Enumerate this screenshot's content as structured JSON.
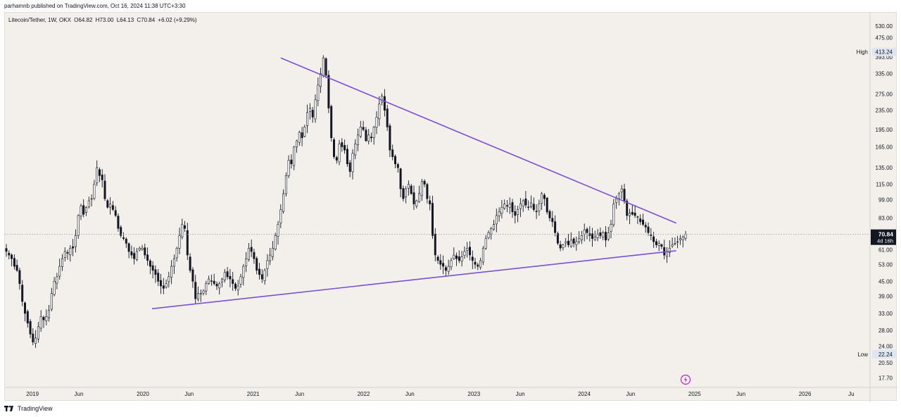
{
  "header": {
    "publisher_line": "parhamnb published on TradingView.com, Oct 16, 2024 11:38 UTC+3:30"
  },
  "legend": {
    "symbol": "Litecoin/Tether, 1W, OKX",
    "open": "O64.82",
    "high": "H73.00",
    "low": "L64.13",
    "close": "C70.84",
    "change": "+6.02 (+9.29%)"
  },
  "price_axis": {
    "ticks": [
      "530.00",
      "475.00",
      "393.00",
      "335.00",
      "275.00",
      "235.00",
      "195.00",
      "165.00",
      "135.00",
      "115.00",
      "99.00",
      "83.00",
      "61.00",
      "53.00",
      "45.00",
      "39.00",
      "33.00",
      "28.00",
      "24.00",
      "20.50",
      "17.70"
    ],
    "high_label": "High",
    "high_value": "413.24",
    "low_label": "Low",
    "low_value": "22.24",
    "last_price": "70.84",
    "countdown": "4d 16h"
  },
  "time_axis": {
    "labels": [
      "2019",
      "Jun",
      "2020",
      "Jun",
      "2021",
      "Jun",
      "2022",
      "Jun",
      "2023",
      "Jun",
      "2024",
      "Jun",
      "2025",
      "Jun",
      "2026",
      "Ju"
    ]
  },
  "footer": {
    "brand": "TradingView"
  },
  "colors": {
    "background": "#f3efeb",
    "candle": "#131722",
    "trendline": "#7b4fd6",
    "last_price_line": "#9e9e9e",
    "flash_icon": "#c026d3"
  },
  "chart_data": {
    "type": "candlestick",
    "symbol": "Litecoin/Tether",
    "timeframe": "1W",
    "exchange": "OKX",
    "y_scale": "log",
    "ylim": [
      16,
      560
    ],
    "x_start": "2018-10",
    "x_end": "2026-07",
    "last_bar": {
      "open": 64.82,
      "high": 73.0,
      "low": 64.13,
      "close": 70.84,
      "change": 6.02,
      "change_pct": 9.29
    },
    "visible_range": {
      "high": 413.24,
      "low": 22.24
    },
    "weekly_closes": [
      60,
      58,
      56,
      52,
      50,
      44,
      37,
      33,
      30,
      27,
      25,
      26,
      29,
      32,
      31,
      32,
      34,
      40,
      45,
      47,
      52,
      56,
      60,
      59,
      62,
      62,
      70,
      85,
      93,
      86,
      92,
      98,
      100,
      115,
      135,
      125,
      120,
      100,
      92,
      95,
      90,
      85,
      75,
      70,
      68,
      65,
      60,
      58,
      56,
      60,
      62,
      62,
      58,
      55,
      52,
      50,
      48,
      45,
      43,
      42,
      44,
      47,
      52,
      56,
      62,
      70,
      78,
      75,
      58,
      50,
      45,
      38,
      40,
      40,
      41,
      44,
      46,
      45,
      44,
      43,
      44,
      46,
      49,
      47,
      46,
      44,
      42,
      43,
      47,
      52,
      56,
      62,
      60,
      56,
      50,
      48,
      46,
      50,
      55,
      58,
      62,
      70,
      78,
      90,
      105,
      125,
      145,
      140,
      165,
      175,
      190,
      180,
      200,
      230,
      240,
      220,
      260,
      300,
      335,
      390,
      330,
      240,
      180,
      150,
      145,
      170,
      165,
      160,
      140,
      130,
      155,
      170,
      185,
      200,
      195,
      175,
      185,
      180,
      200,
      220,
      250,
      270,
      235,
      200,
      160,
      150,
      140,
      135,
      110,
      100,
      110,
      115,
      105,
      95,
      98,
      105,
      118,
      115,
      100,
      95,
      70,
      58,
      55,
      53,
      52,
      50,
      52,
      55,
      58,
      56,
      55,
      57,
      60,
      62,
      58,
      55,
      53,
      52,
      55,
      62,
      68,
      72,
      75,
      78,
      85,
      88,
      92,
      95,
      93,
      95,
      88,
      85,
      90,
      95,
      98,
      94,
      92,
      96,
      90,
      88,
      95,
      105,
      100,
      88,
      83,
      80,
      72,
      65,
      62,
      64,
      66,
      64,
      67,
      65,
      66,
      68,
      70,
      74,
      72,
      70,
      68,
      69,
      71,
      70,
      72,
      67,
      72,
      78,
      95,
      100,
      105,
      110,
      98,
      85,
      87,
      86,
      85,
      84,
      80,
      78,
      76,
      72,
      70,
      66,
      64,
      65,
      63,
      58,
      60,
      62,
      64,
      65,
      66,
      68,
      69,
      70.84
    ],
    "trendlines": [
      {
        "name": "resistance",
        "from": {
          "date": "2021-04",
          "price": 390
        },
        "to": {
          "date": "2024-11",
          "price": 79
        }
      },
      {
        "name": "support",
        "from": {
          "date": "2020-02",
          "price": 34.5
        },
        "to": {
          "date": "2024-11",
          "price": 60.5
        }
      }
    ]
  }
}
